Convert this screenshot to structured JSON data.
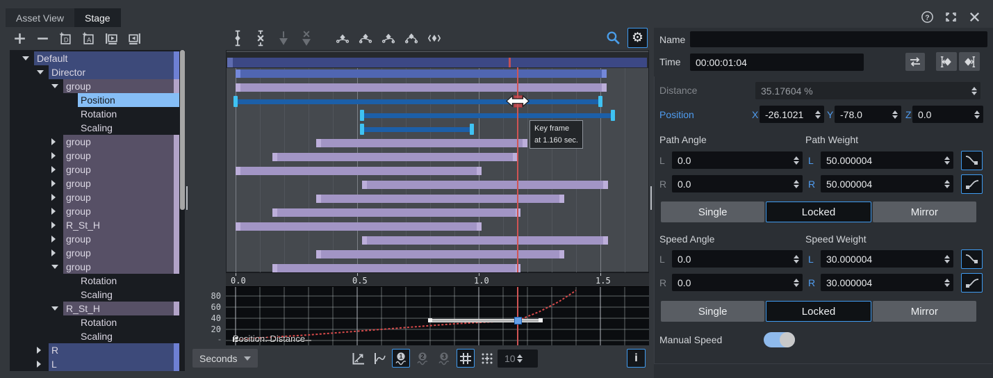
{
  "window": {
    "tabs": [
      {
        "label": "Asset View",
        "active": false
      },
      {
        "label": "Stage",
        "active": true
      }
    ],
    "icons": [
      "help-icon",
      "maximize-icon",
      "close-icon"
    ]
  },
  "object_toolbar": {
    "icons": [
      "add-icon",
      "remove-icon",
      "add-d-item-icon",
      "add-a-item-icon",
      "frame-play-icon",
      "frame-back-icon"
    ]
  },
  "tree": {
    "items": [
      {
        "label": "Default",
        "depth": 0,
        "arrow": "down",
        "hl": "navy"
      },
      {
        "label": "Director",
        "depth": 1,
        "arrow": "down",
        "hl": "navy"
      },
      {
        "label": "group",
        "depth": 2,
        "arrow": "down",
        "hl": "purple"
      },
      {
        "label": "Position",
        "depth": 3,
        "arrow": null,
        "hl": "sel"
      },
      {
        "label": "Rotation",
        "depth": 3,
        "arrow": null,
        "hl": null
      },
      {
        "label": "Scaling",
        "depth": 3,
        "arrow": null,
        "hl": null
      },
      {
        "label": "group",
        "depth": 2,
        "arrow": "right",
        "hl": "purple"
      },
      {
        "label": "group",
        "depth": 2,
        "arrow": "right",
        "hl": "purple"
      },
      {
        "label": "group",
        "depth": 2,
        "arrow": "right",
        "hl": "purple"
      },
      {
        "label": "group",
        "depth": 2,
        "arrow": "right",
        "hl": "purple"
      },
      {
        "label": "group",
        "depth": 2,
        "arrow": "right",
        "hl": "purple"
      },
      {
        "label": "group",
        "depth": 2,
        "arrow": "right",
        "hl": "purple"
      },
      {
        "label": "R_St_H",
        "depth": 2,
        "arrow": "right",
        "hl": "purple"
      },
      {
        "label": "group",
        "depth": 2,
        "arrow": "right",
        "hl": "purple"
      },
      {
        "label": "group",
        "depth": 2,
        "arrow": "right",
        "hl": "purple"
      },
      {
        "label": "group",
        "depth": 2,
        "arrow": "down",
        "hl": "purple"
      },
      {
        "label": "Rotation",
        "depth": 3,
        "arrow": null,
        "hl": null
      },
      {
        "label": "Scaling",
        "depth": 3,
        "arrow": null,
        "hl": null
      },
      {
        "label": "R_St_H",
        "depth": 2,
        "arrow": "down",
        "hl": "purple"
      },
      {
        "label": "Rotation",
        "depth": 3,
        "arrow": null,
        "hl": null
      },
      {
        "label": "Scaling",
        "depth": 3,
        "arrow": null,
        "hl": null
      },
      {
        "label": "R",
        "depth": 1,
        "arrow": "right",
        "hl": "navy"
      },
      {
        "label": "L",
        "depth": 1,
        "arrow": "right",
        "hl": "navy"
      }
    ]
  },
  "timeline": {
    "toolbar": {
      "icons": [
        {
          "name": "add-keyframe-icon",
          "disabled": false
        },
        {
          "name": "remove-keyframe-icon",
          "disabled": false
        },
        {
          "name": "keyframe-down-icon",
          "disabled": true
        },
        {
          "name": "keyframe-down-remove-icon",
          "disabled": true
        },
        {
          "name": "curve-flat-icon",
          "disabled": false
        },
        {
          "name": "curve-ease-in-icon",
          "disabled": false
        },
        {
          "name": "curve-ease-out-icon",
          "disabled": false
        },
        {
          "name": "curve-ease-both-icon",
          "disabled": false
        },
        {
          "name": "step-keyframe-icon",
          "disabled": false
        }
      ],
      "search_icon": "search-icon",
      "settings_icon": "gear-icon"
    },
    "axis_ticks": [
      "0.0",
      "0.5",
      "1.0",
      "1.5"
    ],
    "playhead_time": 1.16,
    "summary_marker_time": 1.117,
    "tracks": [
      {
        "kind": "summary"
      },
      {
        "kind": "bar",
        "color": "blue",
        "start": 0,
        "end": 1.525
      },
      {
        "kind": "bar",
        "color": "purple",
        "start": 0,
        "end": 1.525
      },
      {
        "kind": "keyline",
        "start": 0,
        "end": 1.5,
        "selected_key": 1.16
      },
      {
        "kind": "keyline",
        "start": 0.52,
        "end": 1.55
      },
      {
        "kind": "keyline",
        "start": 0.52,
        "end": 0.97
      },
      {
        "kind": "bar",
        "color": "purple",
        "start": 0.33,
        "end": 1.2
      },
      {
        "kind": "bar",
        "color": "purple",
        "start": 0.15,
        "end": 1.16
      },
      {
        "kind": "bar",
        "color": "purple",
        "start": 0,
        "end": 1.01
      },
      {
        "kind": "bar",
        "color": "purple",
        "start": 0.52,
        "end": 1.53
      },
      {
        "kind": "bar",
        "color": "purple",
        "start": 0.33,
        "end": 1.35
      },
      {
        "kind": "bar",
        "color": "purple",
        "start": 0.15,
        "end": 1.17
      },
      {
        "kind": "bar",
        "color": "purple",
        "start": 0,
        "end": 1.01
      },
      {
        "kind": "bar",
        "color": "purple",
        "start": 0.52,
        "end": 1.53
      },
      {
        "kind": "bar",
        "color": "purple",
        "start": 0.33,
        "end": 1.35
      },
      {
        "kind": "bar",
        "color": "purple",
        "start": 0.15,
        "end": 1.17
      }
    ],
    "tooltip": {
      "line1": "Key frame",
      "line2": "at 1.160 sec."
    }
  },
  "curve_editor": {
    "label": "Position: Distance",
    "y_ticks": [
      "80",
      "60",
      "40",
      "20"
    ],
    "chart_data": {
      "type": "line",
      "series": [
        {
          "name": "Position: Distance",
          "points": [
            [
              0,
              2
            ],
            [
              0.3,
              10
            ],
            [
              0.6,
              20
            ],
            [
              0.9,
              30
            ],
            [
              1.16,
              36
            ],
            [
              1.25,
              52
            ],
            [
              1.33,
              70
            ],
            [
              1.4,
              90
            ]
          ],
          "color": "#d84a4a"
        }
      ],
      "x_ticks": [
        0,
        0.5,
        1.0,
        1.5
      ],
      "ylim": [
        0,
        100
      ],
      "grid": true
    },
    "selected_key": {
      "t": 1.16,
      "v": 36,
      "handle_left_t": 0.8,
      "handle_right_t": 1.255
    },
    "origin_key": {
      "t": 0,
      "v": 2,
      "handle_right_t": 0.31
    }
  },
  "transport": {
    "unit_label": "Seconds",
    "icons": [
      {
        "name": "fit-view-icon"
      },
      {
        "name": "curve-view-icon"
      },
      {
        "name": "order-1-icon",
        "active": true,
        "digit": "1"
      },
      {
        "name": "order-2-icon",
        "disabled": true,
        "digit": "2"
      },
      {
        "name": "order-3-icon",
        "disabled": true,
        "digit": "3"
      },
      {
        "name": "grid-icon",
        "active": true
      },
      {
        "name": "snap-icon"
      }
    ],
    "subdivision": "10",
    "info_label": "i"
  },
  "properties": {
    "name_label": "Name",
    "name_value": "",
    "time_label": "Time",
    "time_value": "00:00:01:04",
    "distance_label": "Distance",
    "distance_value": "35.17604 %",
    "position_label": "Position",
    "x_label": "X",
    "x_value": "-26.1021",
    "y_label": "Y",
    "y_value": "-78.0",
    "z_label": "Z",
    "z_value": "0.0",
    "path_angle_label": "Path Angle",
    "path_weight_label": "Path Weight",
    "l_label": "L",
    "r_label": "R",
    "path_angle_l": "0.0",
    "path_angle_r": "0.0",
    "path_weight_l": "50.000004",
    "path_weight_r": "50.000004",
    "modes": [
      "Single",
      "Locked",
      "Mirror"
    ],
    "path_mode_selected": "Locked",
    "speed_angle_label": "Speed Angle",
    "speed_weight_label": "Speed Weight",
    "speed_angle_l": "0.0",
    "speed_angle_r": "0.0",
    "speed_weight_l": "30.000004",
    "speed_weight_r": "30.000004",
    "speed_mode_selected": "Locked",
    "manual_speed_label": "Manual Speed",
    "manual_speed_on": true
  },
  "colors": {
    "accent": "#3f9bf0",
    "playhead": "#d05454",
    "curve": "#d84a4a",
    "bar_blue": "#5066b2",
    "bar_purple": "#a295c5",
    "keyline": "#1c5fa8",
    "key_cap": "#3fc2f2",
    "selected_row": "#86bef6",
    "toggle_on": "#8fbaec"
  }
}
